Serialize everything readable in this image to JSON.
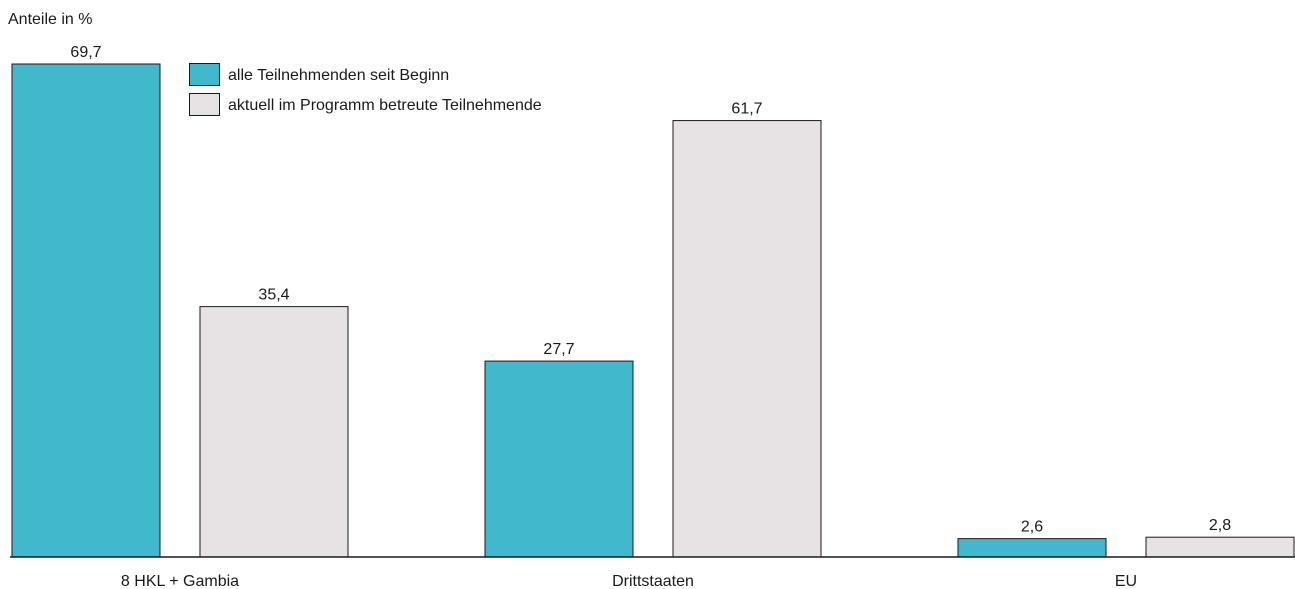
{
  "chart_data": {
    "type": "bar",
    "y_label": "Anteile in %",
    "categories": [
      "8 HKL + Gambia",
      "Drittstaaten",
      "EU"
    ],
    "series": [
      {
        "name": "alle Teilnehmenden seit Beginn",
        "color": "#41b8cb",
        "values": [
          69.7,
          27.7,
          2.6
        ],
        "value_labels": [
          "69,7",
          "27,7",
          "2,6"
        ]
      },
      {
        "name": "aktuell im Programm betreute Teilnehmende",
        "color": "#e7e3e4",
        "values": [
          35.4,
          61.7,
          2.8
        ],
        "value_labels": [
          "35,4",
          "61,7",
          "2,8"
        ]
      }
    ],
    "legend": "upper left",
    "grid": false
  }
}
